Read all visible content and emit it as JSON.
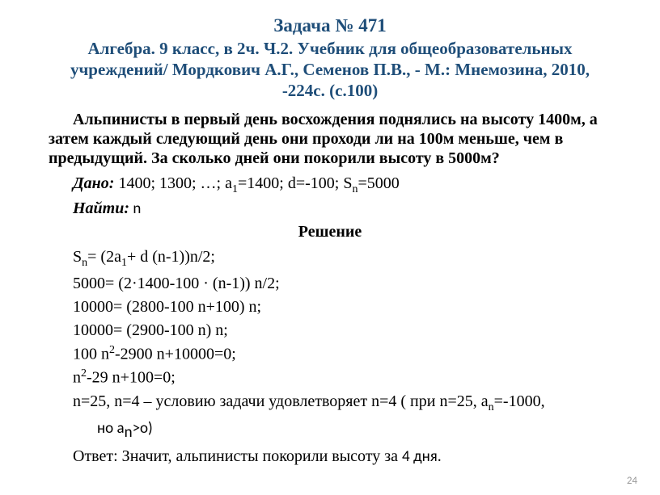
{
  "title": {
    "line1": "Задача № 471",
    "line2": "Алгебра. 9 класс, в 2ч. Ч.2. Учебник для общеобразовательных учреждений/ Мордкович А.Г., Семенов П.В.,  - М.: Мнемозина, 2010, -224с. (с.100)",
    "color": "#1f4e79"
  },
  "problem": "Альпинисты в первый день восхождения поднялись на высоту 1400м, а затем каждый следующий день они проходи ли на 100м меньше, чем в предыдущий. За сколько дней они покорили высоту в 5000м?",
  "given": {
    "label": "Дано:",
    "sequence": " 1400; 1300; …;  а",
    "a1_value": "=1400; d=-100; S",
    "sn_value": "=5000"
  },
  "find": {
    "label": "Найти:",
    "value": " n"
  },
  "solution_header": "Решение",
  "solution": {
    "s1_a": "S",
    "s1_b": "= (2a",
    "s1_c": "+ d (n-1))n/2;",
    "s2": "5000= (2·1400-100 · (n-1)) n/2;",
    "s3": "10000= (2800-100 n+100) n;",
    "s4": "10000= (2900-100 n) n;",
    "s5_a": "100 n",
    "s5_b": "-2900 n+10000=0;",
    "s6_a": "n",
    "s6_b": "-29 n+100=0;",
    "s7_a": "n=25, n=4 – условию задачи удовлетворяет n=4 ( при n=25, a",
    "s7_b": "=-1000,",
    "s7_c": "но а",
    "s7_d": ">о)"
  },
  "answer": {
    "prefix": "Ответ: Значит, альпинисты покорили высоту за ",
    "value": "4 дня",
    "suffix": "."
  },
  "page_number": "24"
}
